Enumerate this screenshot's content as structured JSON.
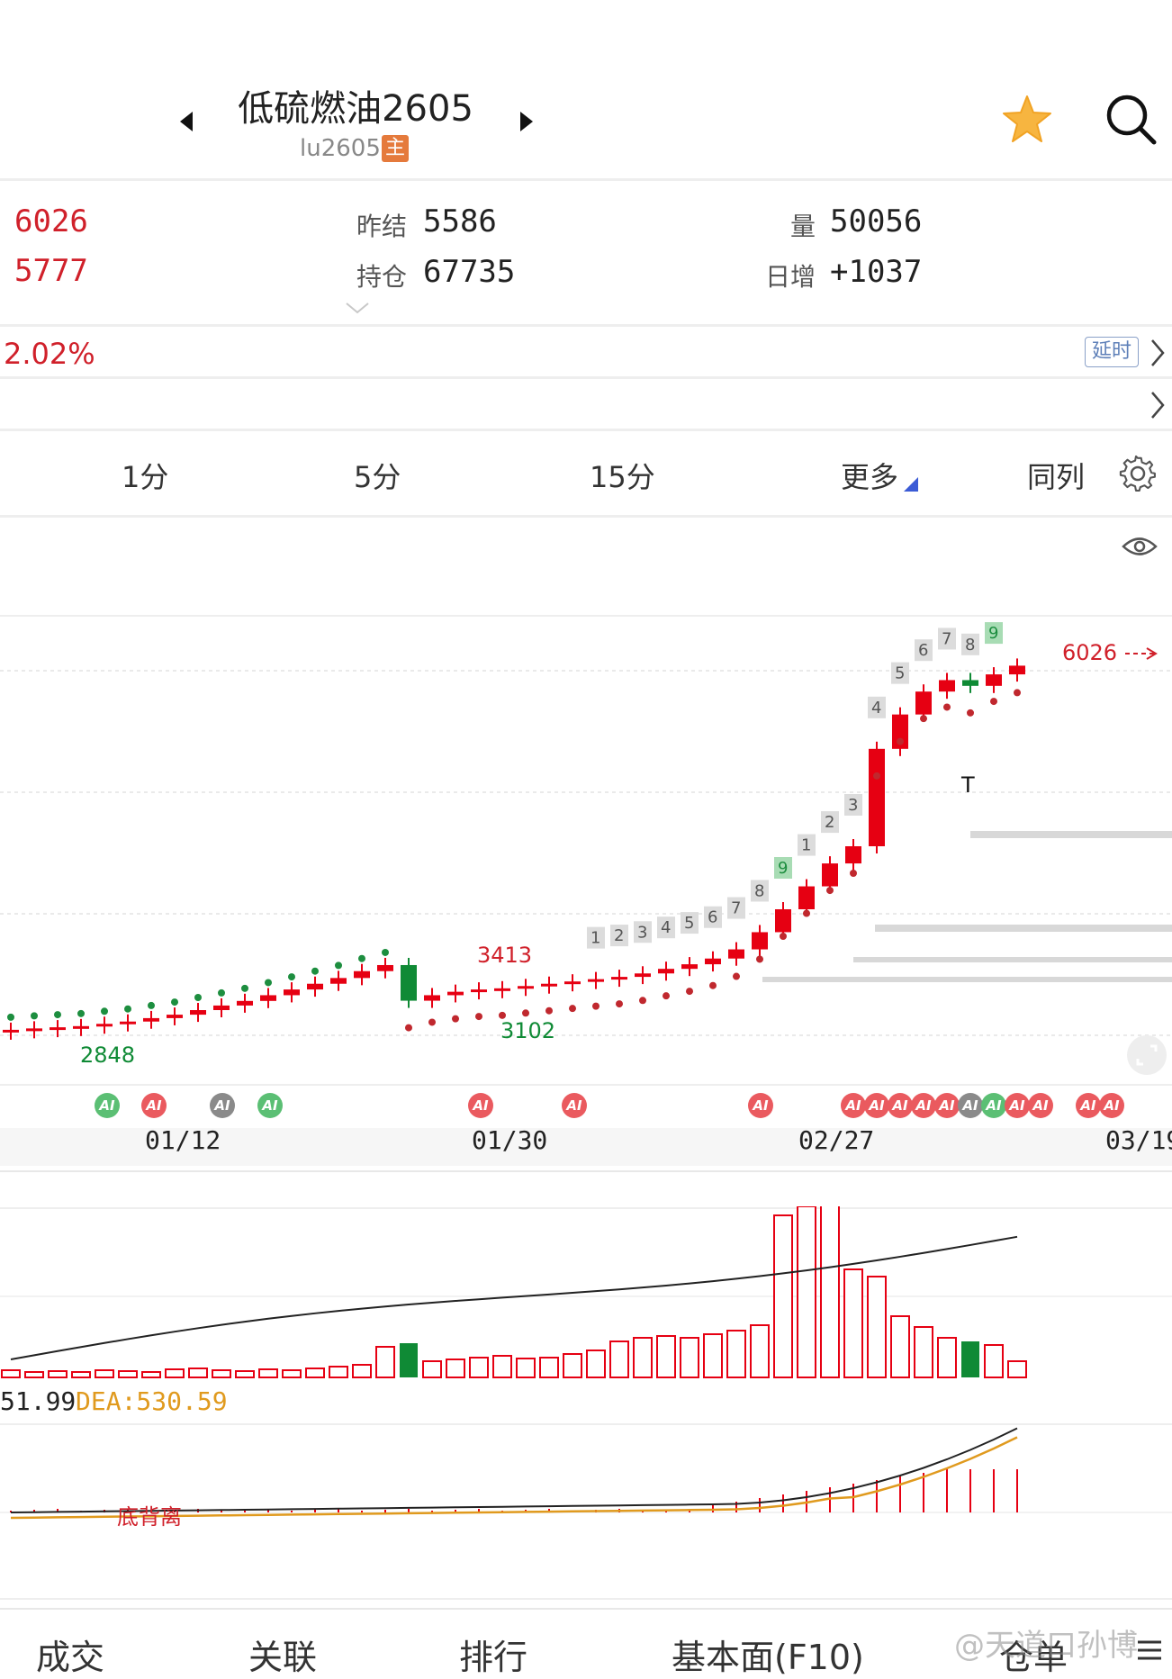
{
  "header": {
    "title": "低硫燃油2605",
    "code": "lu2605",
    "main_badge": "主",
    "favorite_icon": "star-icon",
    "search_icon": "search-icon"
  },
  "quote": {
    "high": "6026",
    "low": "5777",
    "prev_settle_label": "昨结",
    "prev_settle": "5586",
    "open_interest_label": "持仓",
    "open_interest": "67735",
    "volume_label": "量",
    "volume": "50056",
    "daily_increase_label": "日增",
    "daily_increase": "+1037",
    "change_pct": "2.02%",
    "delay_badge": "延时"
  },
  "period_tabs": [
    "1分",
    "5分",
    "15分",
    "更多",
    "同列"
  ],
  "chart_labels": {
    "high_marker": "6026",
    "peak_label": "3413",
    "low_label_1": "3102",
    "low_label_2": "2848",
    "dates": [
      "01/12",
      "01/30",
      "02/27",
      "03/19"
    ],
    "macd_text": "51.99",
    "dea_text": "DEA:530.59",
    "divergence_text": "底背离"
  },
  "bottom_nav": [
    "成交",
    "关联",
    "排行",
    "基本面(F10)",
    "仓单"
  ],
  "watermark": "@天道口孙博",
  "colors": {
    "up": "#e60012",
    "down": "#0f8a35",
    "accent": "#d0202a"
  },
  "chart_data": {
    "type": "candlestick",
    "series": [
      {
        "name": "low-sulfur fuel oil daily",
        "closes": [
          2848,
          2860,
          2870,
          2880,
          2900,
          2920,
          2950,
          2980,
          3020,
          3060,
          3100,
          3150,
          3200,
          3250,
          3300,
          3360,
          3413,
          3102,
          3150,
          3180,
          3200,
          3210,
          3230,
          3250,
          3270,
          3290,
          3310,
          3340,
          3380,
          3420,
          3470,
          3550,
          3700,
          3900,
          4100,
          4300,
          4450,
          5300,
          5600,
          5800,
          5900,
          5850,
          5950,
          6026
        ]
      }
    ],
    "ai_signal_dates": [
      "01/12",
      "01/30",
      "02/27",
      "03/19"
    ]
  }
}
